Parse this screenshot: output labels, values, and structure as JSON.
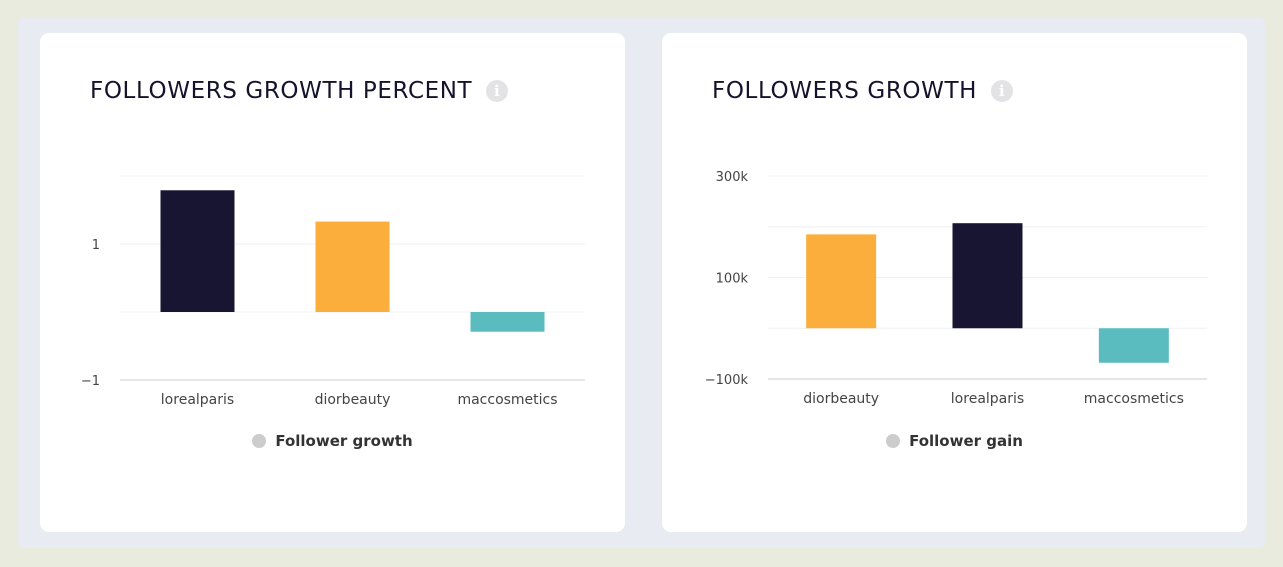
{
  "charts": [
    {
      "title": "FOLLOWERS GROWTH PERCENT",
      "legend": "Follower growth",
      "ticks": [
        {
          "value": 1,
          "label": "1"
        },
        {
          "value": -1,
          "label": "−1"
        }
      ]
    },
    {
      "title": "FOLLOWERS GROWTH",
      "legend": "Follower gain",
      "ticks": [
        {
          "value": 300000,
          "label": "300k"
        },
        {
          "value": 100000,
          "label": "100k"
        },
        {
          "value": -100000,
          "label": "−100k"
        }
      ]
    }
  ],
  "chart_data": [
    {
      "type": "bar",
      "title": "FOLLOWERS GROWTH PERCENT",
      "categories": [
        "lorealparis",
        "diorbeauty",
        "maccosmetics"
      ],
      "series": [
        {
          "name": "Follower growth",
          "values": [
            1.79,
            1.33,
            -0.29
          ]
        }
      ],
      "bar_colors": [
        "#181533",
        "#fbae3c",
        "#5bbcbf"
      ],
      "ylim": [
        -1,
        2
      ],
      "yticks": [
        -1,
        1
      ],
      "grid": true,
      "legend_position": "bottom"
    },
    {
      "type": "bar",
      "title": "FOLLOWERS GROWTH",
      "categories": [
        "diorbeauty",
        "lorealparis",
        "maccosmetics"
      ],
      "series": [
        {
          "name": "Follower gain",
          "values": [
            185000,
            207000,
            -68000
          ]
        }
      ],
      "bar_colors": [
        "#fbae3c",
        "#181533",
        "#5bbcbf"
      ],
      "ylim": [
        -100000,
        300000
      ],
      "yticks": [
        -100000,
        100000,
        300000
      ],
      "grid": true,
      "legend_position": "bottom"
    }
  ]
}
